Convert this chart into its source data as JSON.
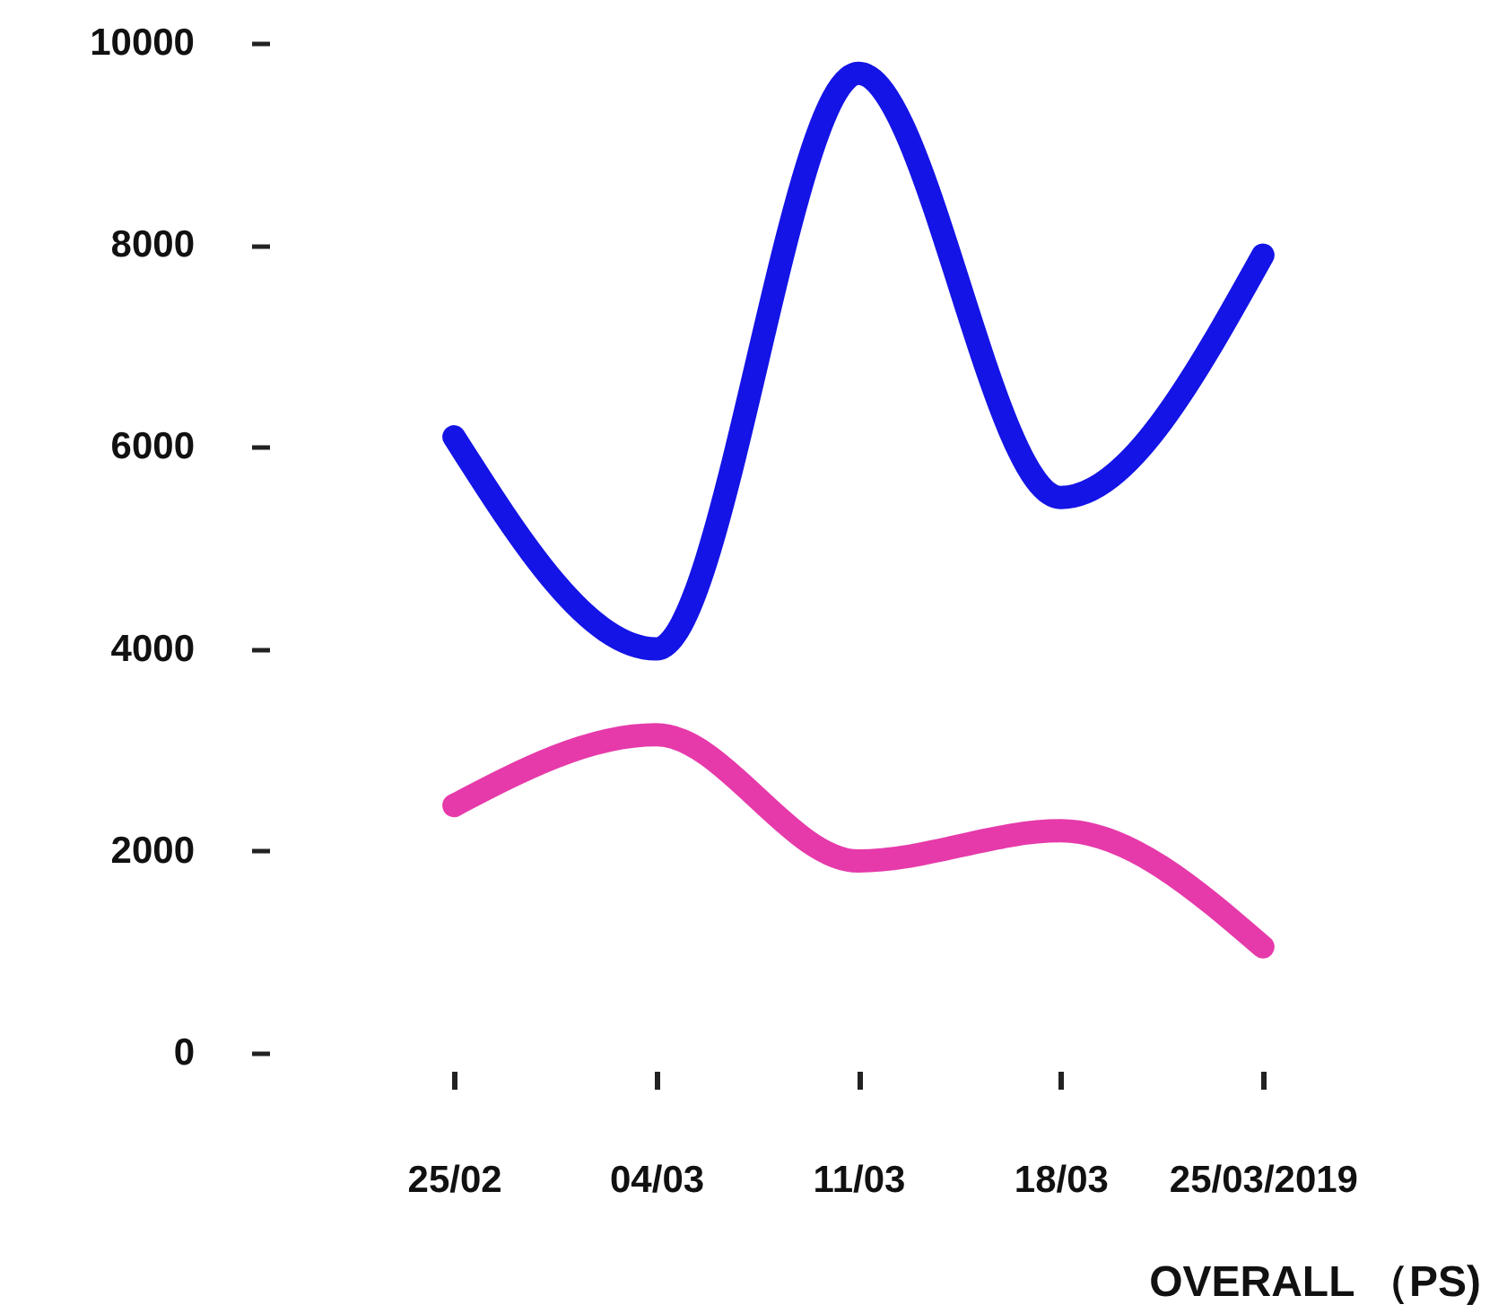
{
  "chart_data": {
    "type": "line",
    "xlabel": "OVERALL （PS)",
    "categories": [
      "25/02",
      "04/03",
      "11/03",
      "18/03",
      "25/03/2019"
    ],
    "series": [
      {
        "color": "#1414e6",
        "values": [
          6100,
          4000,
          9700,
          5500,
          7900
        ]
      },
      {
        "color": "#e63aaa",
        "values": [
          2450,
          3150,
          1900,
          2200,
          1050
        ]
      }
    ],
    "ylim": [
      0,
      10000
    ],
    "yticks": [
      0,
      2000,
      4000,
      6000,
      8000,
      10000
    ],
    "line_style": "solid"
  }
}
